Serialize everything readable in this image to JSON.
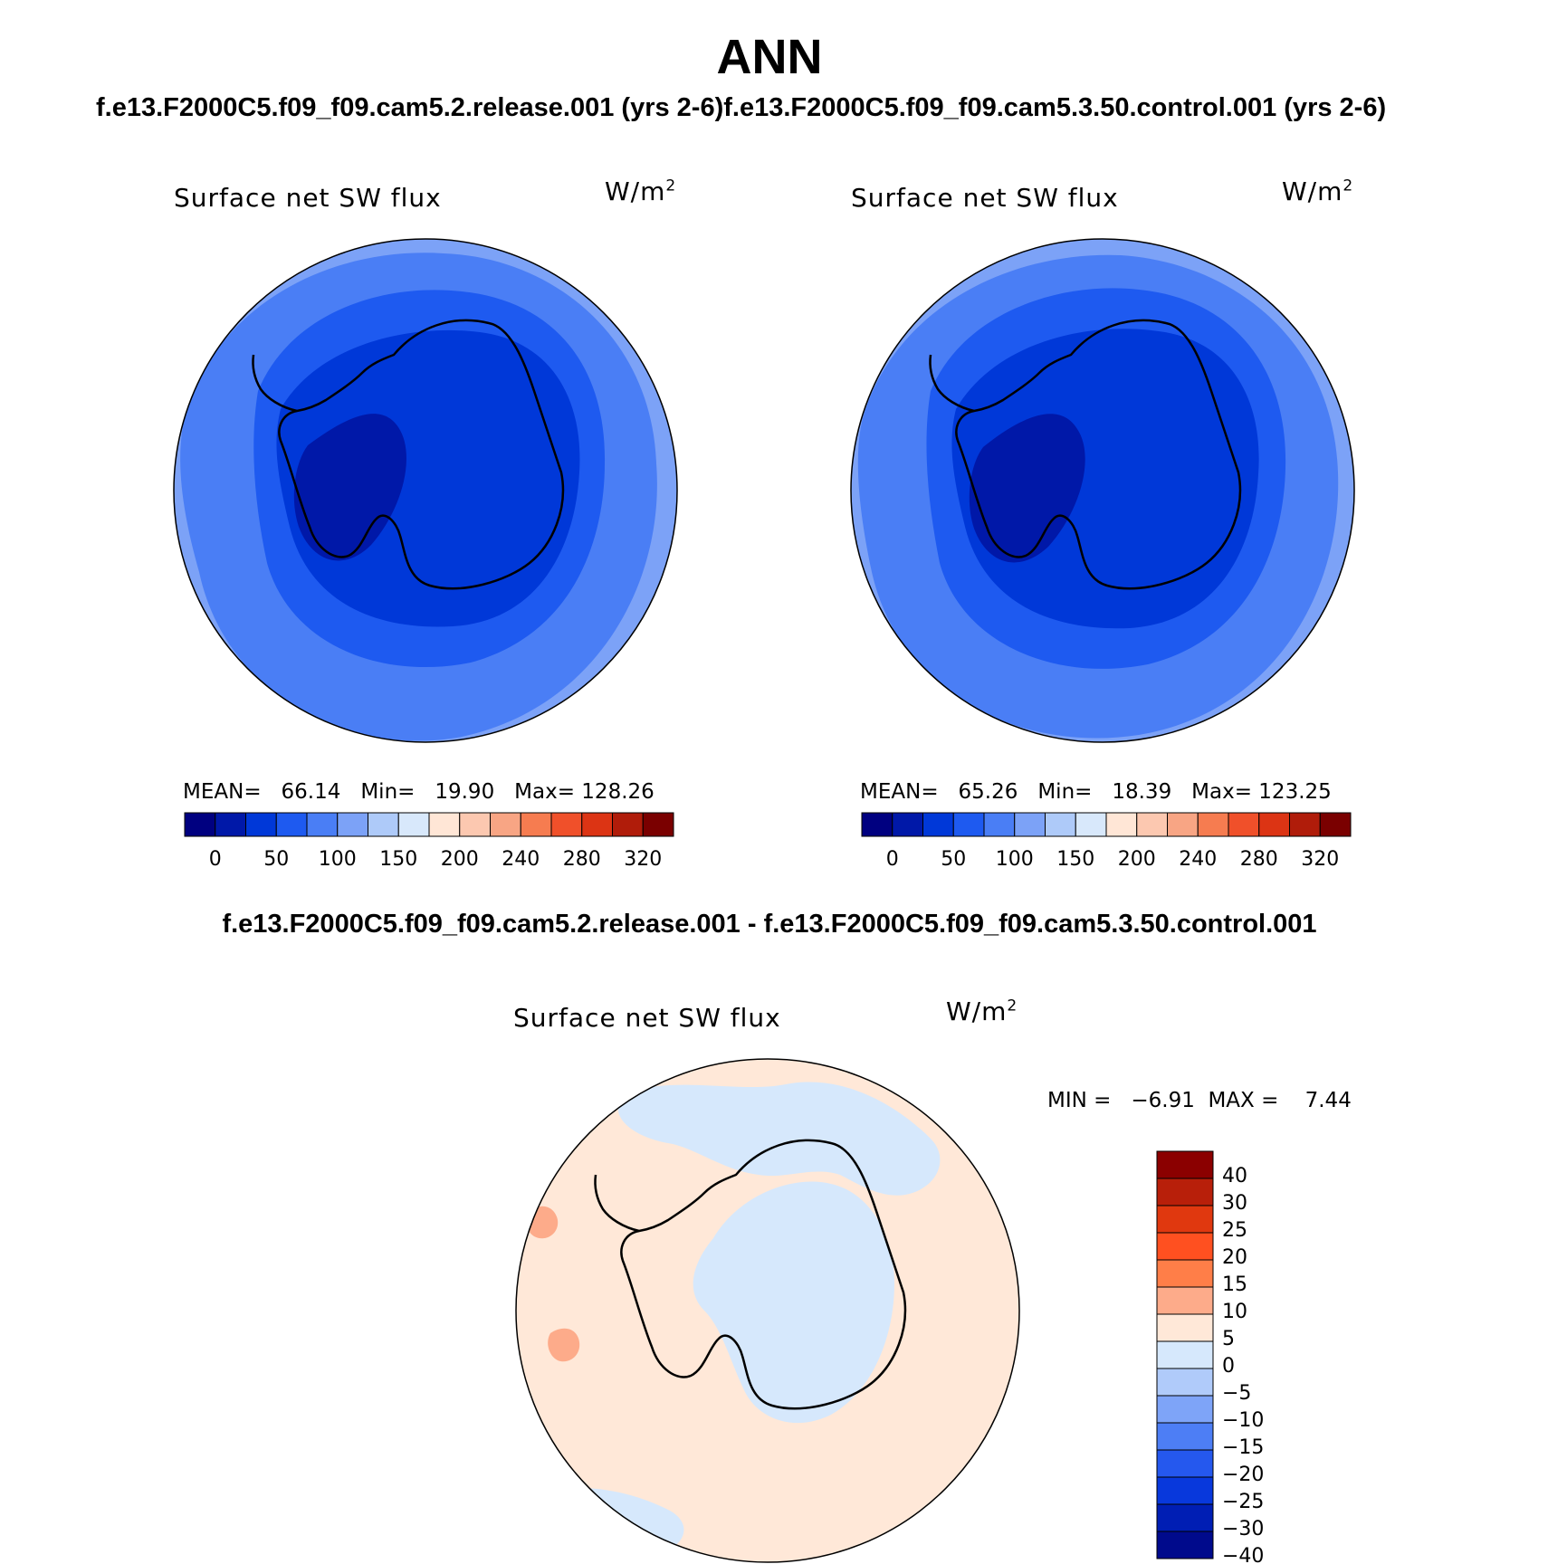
{
  "title": "ANN",
  "subtitle": "f.e13.F2000C5.f09_f09.cam5.2.release.001 (yrs 2-6)f.e13.F2000C5.f09_f09.cam5.3.50.control.001 (yrs 2-6)",
  "diff_subtitle": "f.e13.F2000C5.f09_f09.cam5.2.release.001 - f.e13.F2000C5.f09_f09.cam5.3.50.control.001",
  "panels": [
    {
      "title": "Surface net SW flux",
      "units": "W/m",
      "units_sup": "2",
      "stats": {
        "mean_label": "MEAN=",
        "mean": "66.14",
        "min_label": "Min=",
        "min": "19.90",
        "max_label": "Max=",
        "max": "128.26"
      }
    },
    {
      "title": "Surface net SW flux",
      "units": "W/m",
      "units_sup": "2",
      "stats": {
        "mean_label": "MEAN=",
        "mean": "65.26",
        "min_label": "Min=",
        "min": "18.39",
        "max_label": "Max=",
        "max": "123.25"
      }
    }
  ],
  "diff_panel": {
    "title": "Surface net SW flux",
    "units": "W/m",
    "units_sup": "2",
    "minmax": "MIN =   −6.91  MAX =    7.44"
  },
  "colorbar_abs": {
    "colors": [
      "#000080",
      "#0018a8",
      "#0038d8",
      "#1e5af0",
      "#4a7ef5",
      "#7ca2f7",
      "#aecaf9",
      "#d8e8fb",
      "#ffe6d6",
      "#fcc8b0",
      "#f8a584",
      "#f67c50",
      "#f0502a",
      "#dc3414",
      "#b01c0a",
      "#7a0000"
    ],
    "labels": [
      "0",
      "50",
      "100",
      "150",
      "200",
      "240",
      "280",
      "320"
    ]
  },
  "colorbar_diff": {
    "colors": [
      "#8b0000",
      "#b81f0a",
      "#e0380f",
      "#ff5020",
      "#ff7e48",
      "#fdab8a",
      "#ffe8d8",
      "#d6e8fc",
      "#b0cbfa",
      "#7ea4f8",
      "#4d7ef5",
      "#2558ee",
      "#0838dc",
      "#001eb4",
      "#000a8c"
    ],
    "labels": [
      "40",
      "30",
      "25",
      "20",
      "15",
      "10",
      "5",
      "0",
      "−5",
      "−10",
      "−15",
      "−20",
      "−25",
      "−30",
      "−40"
    ]
  },
  "map_colors": {
    "abs_band1": "#7ca2f7",
    "abs_band2": "#4a7ef5",
    "abs_band3": "#1e5af0",
    "abs_band4": "#0038d8",
    "abs_band5": "#0018a8",
    "diff_pos": "#ffe8d8",
    "diff_neg": "#d6e8fc",
    "diff_pos2": "#fdab8a"
  }
}
